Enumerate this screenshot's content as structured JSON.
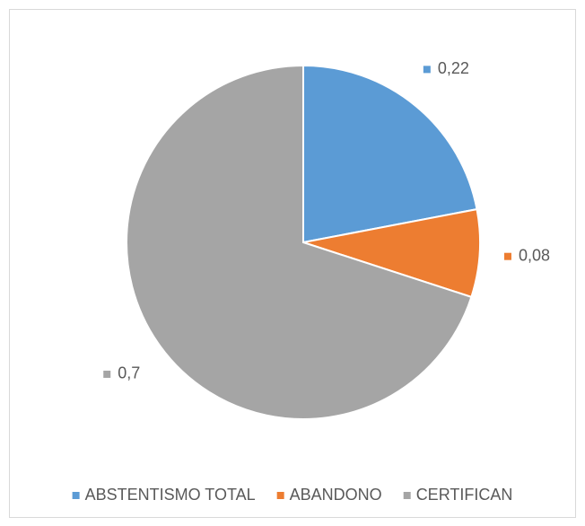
{
  "chart_data": {
    "type": "pie",
    "categories": [
      "ABSTENTISMO TOTAL",
      "ABANDONO",
      "CERTIFICAN"
    ],
    "values": [
      0.22,
      0.08,
      0.7
    ],
    "value_labels": [
      "0,22",
      "0,08",
      "0,7"
    ],
    "colors": [
      "#5b9bd5",
      "#ed7d31",
      "#a5a5a5"
    ],
    "legend": "bottom"
  }
}
